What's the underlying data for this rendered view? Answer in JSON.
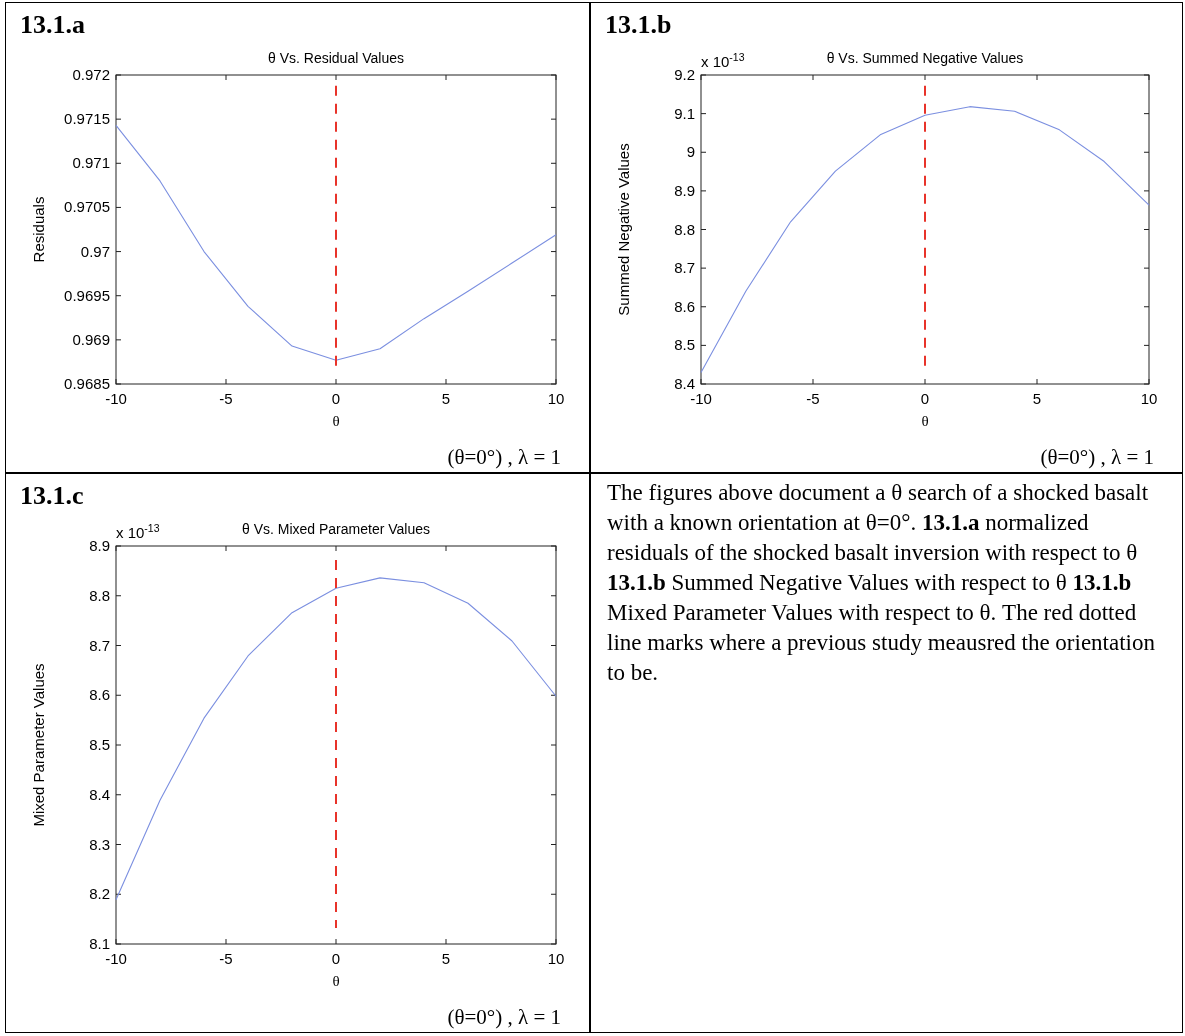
{
  "chart_data": [
    {
      "type": "line",
      "title": "13.1.a",
      "subtitle": "θ Vs. Residual Values",
      "xlabel": "θ",
      "ylabel": "Residuals",
      "x": [
        -10,
        -8,
        -6,
        -4,
        -2,
        0,
        2,
        4,
        6,
        8,
        10
      ],
      "series": [
        {
          "color": "#7b8fe0",
          "values": [
            0.97143,
            0.9708,
            0.97,
            0.96938,
            0.96893,
            0.96877,
            0.9689,
            0.96924,
            0.96955,
            0.96987,
            0.97019
          ]
        }
      ],
      "xlim": [
        -10,
        10
      ],
      "xticks": [
        -10,
        -5,
        0,
        5,
        10
      ],
      "ylim": [
        0.9685,
        0.972
      ],
      "yticks": [
        0.9685,
        0.969,
        0.9695,
        0.97,
        0.9705,
        0.971,
        0.9715,
        0.972
      ],
      "ref_lines": [
        {
          "axis": "x",
          "value": 0,
          "color": "#e8332a",
          "line_style": "dashed"
        }
      ],
      "annotations": [
        "(θ=0°) , λ = 1"
      ],
      "grid": false,
      "marker": "none"
    },
    {
      "type": "line",
      "title": "13.1.b",
      "subtitle": "θ Vs. Summed Negative Values",
      "xlabel": "θ",
      "ylabel": "Summed Negative Values",
      "x": [
        -10,
        -8,
        -6,
        -4,
        -2,
        0,
        2,
        4,
        6,
        8,
        10
      ],
      "series": [
        {
          "color": "#7b8fe0",
          "values": [
            8.43,
            8.64,
            8.82,
            8.951,
            9.045,
            9.096,
            9.118,
            9.106,
            9.058,
            8.976,
            8.863
          ]
        }
      ],
      "xlim": [
        -10,
        10
      ],
      "xticks": [
        -10,
        -5,
        0,
        5,
        10
      ],
      "ylim": [
        8.4,
        9.2
      ],
      "yticks": [
        8.4,
        8.5,
        8.6,
        8.7,
        8.8,
        8.9,
        9,
        9.1,
        9.2
      ],
      "ref_lines": [
        {
          "axis": "x",
          "value": 0,
          "color": "#e8332a",
          "line_style": "dashed"
        }
      ],
      "annotations": [
        "x 10$^{-13}$",
        "(θ=0°) , λ = 1"
      ],
      "grid": false,
      "marker": "none"
    },
    {
      "type": "line",
      "title": "13.1.c",
      "subtitle": "θ Vs. Mixed Parameter Values",
      "xlabel": "θ",
      "ylabel": "Mixed Parameter Values",
      "x": [
        -10,
        -8,
        -6,
        -4,
        -2,
        0,
        2,
        4,
        6,
        8,
        10
      ],
      "series": [
        {
          "color": "#7b8fe0",
          "values": [
            8.189,
            8.389,
            8.554,
            8.679,
            8.766,
            8.815,
            8.836,
            8.826,
            8.785,
            8.709,
            8.598
          ]
        }
      ],
      "xlim": [
        -10,
        10
      ],
      "xticks": [
        -10,
        -5,
        0,
        5,
        10
      ],
      "ylim": [
        8.1,
        8.9
      ],
      "yticks": [
        8.1,
        8.2,
        8.3,
        8.4,
        8.5,
        8.6,
        8.7,
        8.8,
        8.9
      ],
      "ref_lines": [
        {
          "axis": "x",
          "value": 0,
          "color": "#e8332a",
          "line_style": "dashed"
        }
      ],
      "annotations": [
        "x 10$^{-13}$",
        "(θ=0°) , λ = 1"
      ],
      "grid": false,
      "marker": "none"
    },
    {
      "type": "other",
      "annotations": [
        "The figures above document a θ search of a shocked basalt with a known orientation at θ=0°.  ",
        "13.1.a",
        " normalized residuals of the shocked basalt inversion with respect to θ ",
        "13.1.b",
        " Summed Negative Values with respect to θ ",
        "13.1.b",
        " Mixed Parameter Values with respect to θ. The red dotted line marks where a previous study meausred the orientation to be."
      ]
    }
  ]
}
